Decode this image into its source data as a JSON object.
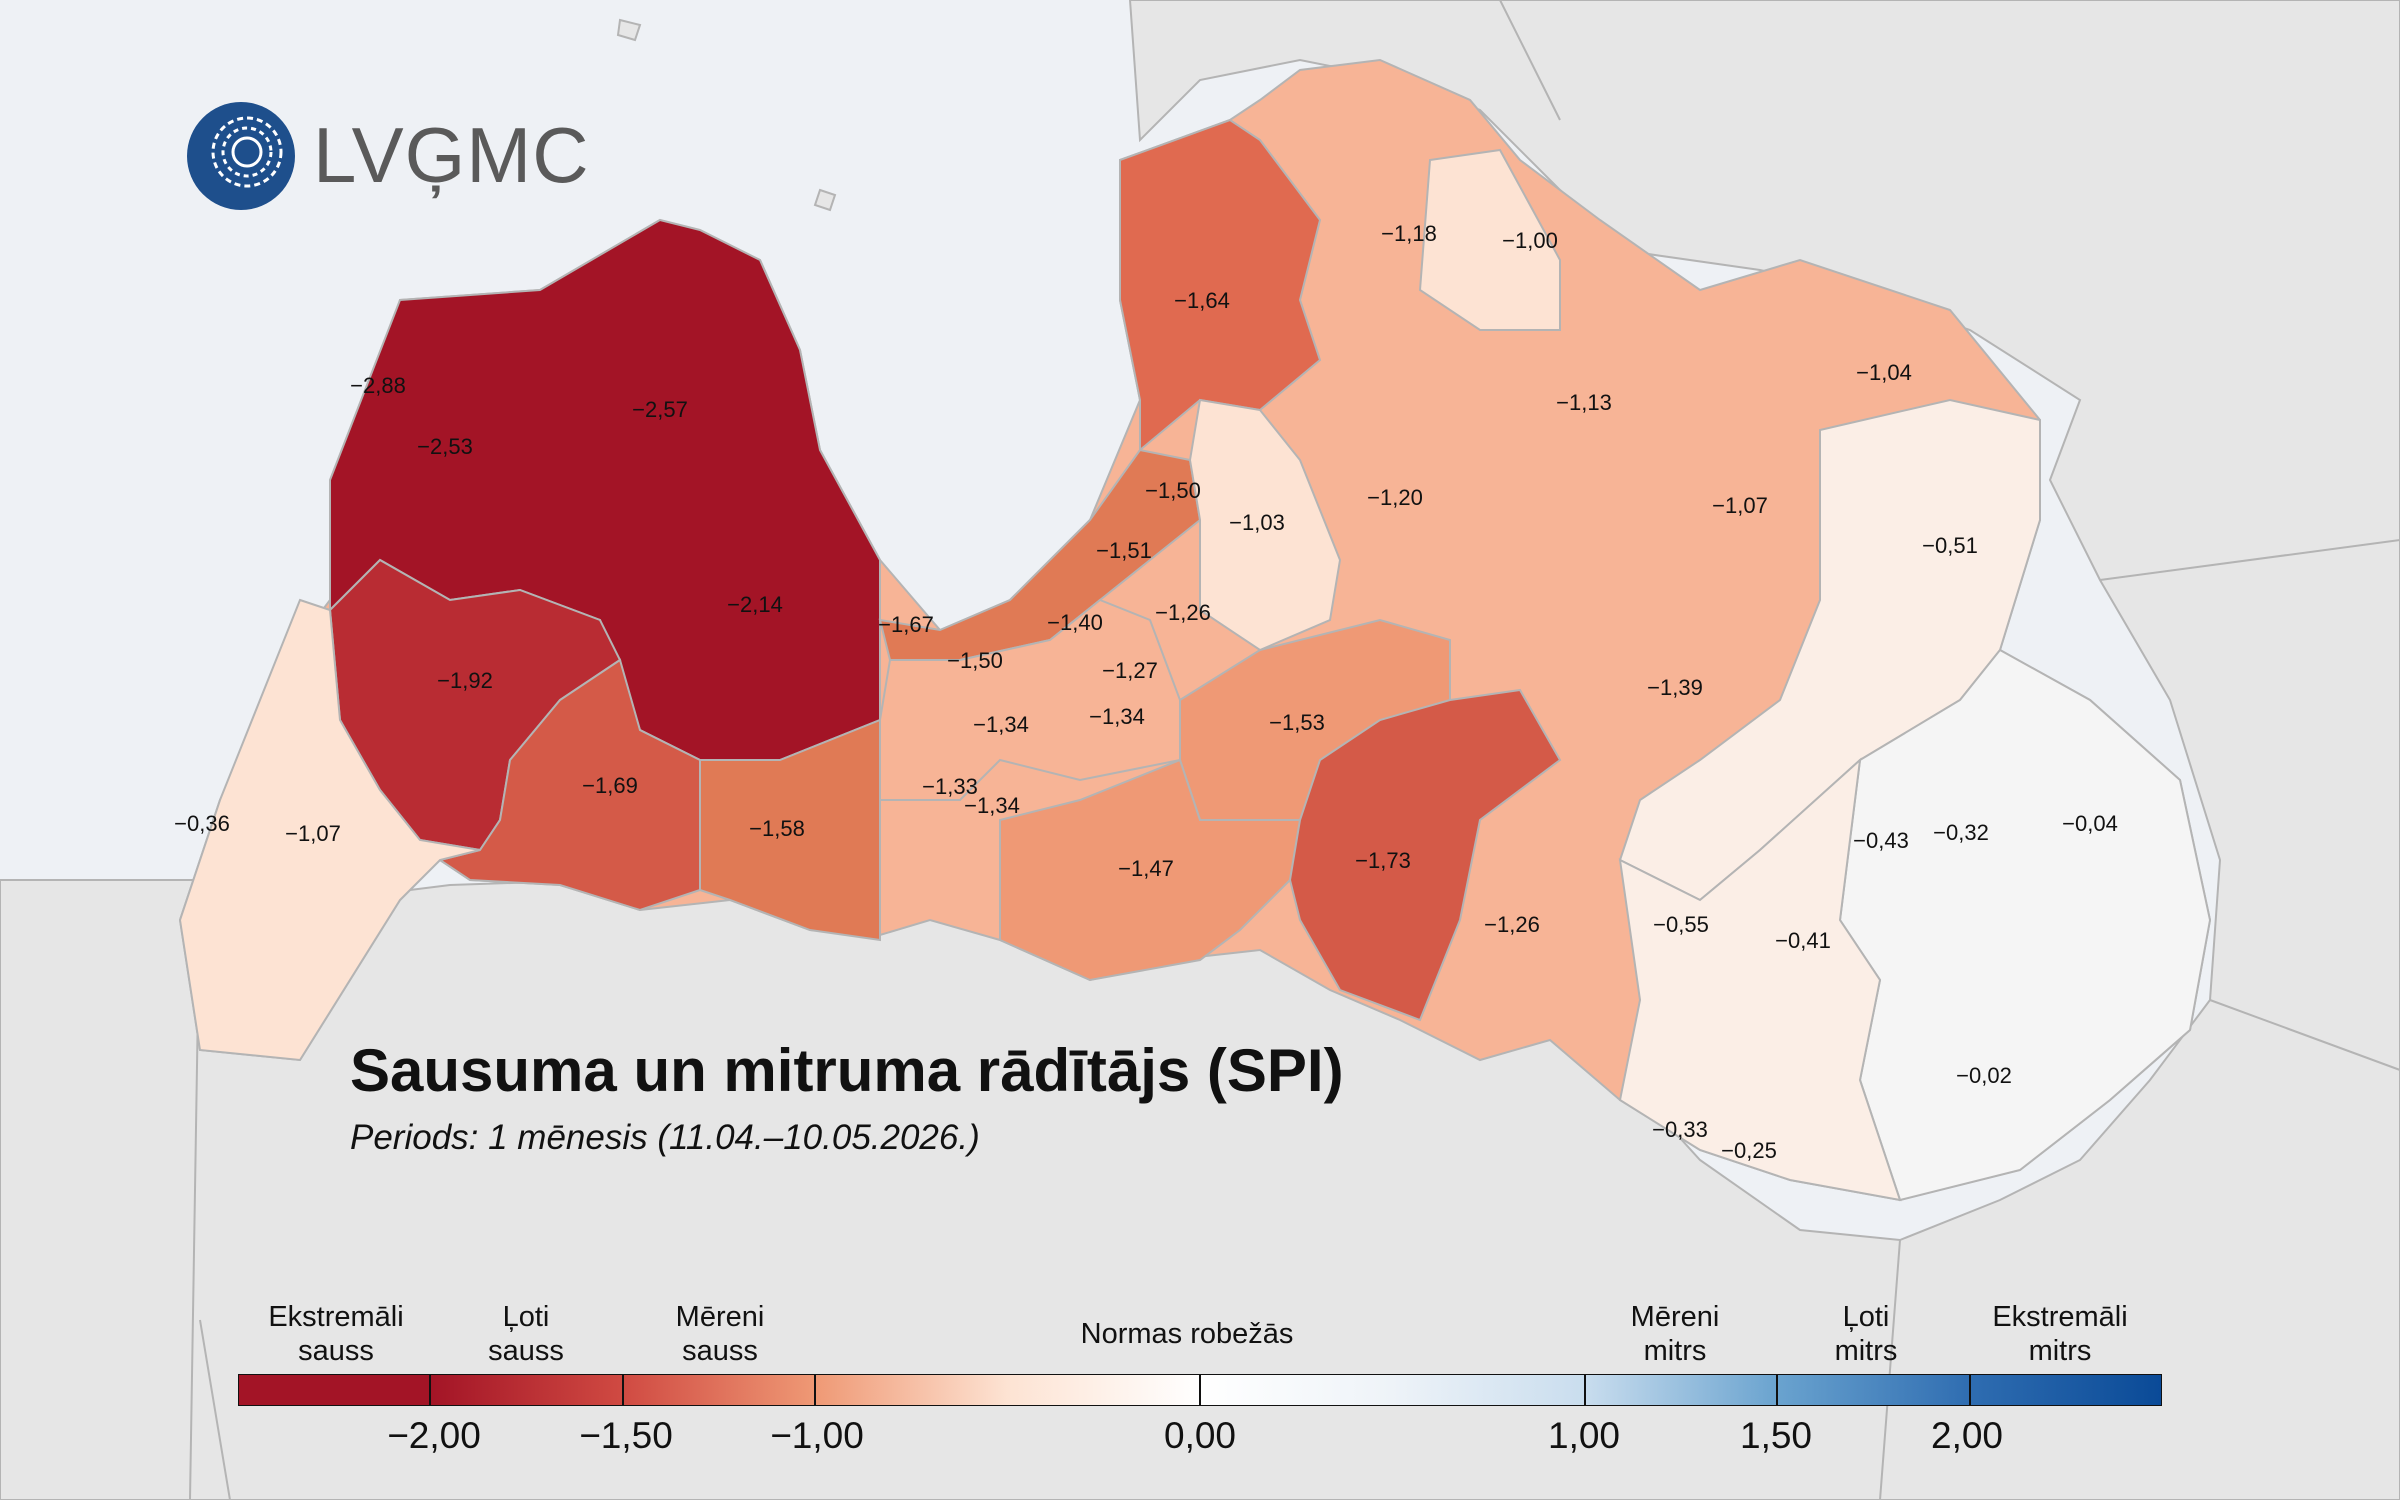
{
  "logo": {
    "text": "LVĢMC",
    "brand_color": "#1e4f8c"
  },
  "title": "Sausuma un mitruma rādītājs (SPI)",
  "subtitle": "Periods: 1 mēnesis (11.04.–10.05.2026.)",
  "colors": {
    "sea": "#eef1f5",
    "neighbor_land": "#e6e6e6",
    "border": "#b4b4b4",
    "extreme_dry": "#a31426",
    "very_dry": "#b92c33",
    "dry_dark": "#d45a48",
    "dry_mid": "#e07a55",
    "dry_light": "#ef9975",
    "mild": "#f7b496",
    "mild_light": "#fbcdb6",
    "near_normal": "#fde3d3",
    "pale": "#fbeee6",
    "neutral": "#f5f5f5"
  },
  "region_values": [
    "−2,88",
    "−2,53",
    "−2,57",
    "−2,14",
    "−1,92",
    "−1,69",
    "−1,58",
    "−1,67",
    "−1,50",
    "−1,34",
    "−1,33",
    "−1,34",
    "−1,40",
    "−1,51",
    "−1,50",
    "−1,26",
    "−1,27",
    "−1,34",
    "−1,03",
    "−1,64",
    "−1,18",
    "−1,00",
    "−1,13",
    "−1,04",
    "−1,20",
    "−1,07",
    "−0,51",
    "−1,39",
    "−1,53",
    "−1,47",
    "−1,73",
    "−1,26",
    "−0,55",
    "−0,41",
    "−0,43",
    "−0,32",
    "−0,04",
    "−0,02",
    "−0,33",
    "−0,25",
    "−0,36",
    "−1,07"
  ],
  "legend": {
    "categories": [
      {
        "line1": "Ekstremāli",
        "line2": "sauss"
      },
      {
        "line1": "Ļoti",
        "line2": "sauss"
      },
      {
        "line1": "Mēreni",
        "line2": "sauss"
      },
      {
        "line1": "Normas robežās",
        "line2": ""
      },
      {
        "line1": "Mēreni",
        "line2": "mitrs"
      },
      {
        "line1": "Ļoti",
        "line2": "mitrs"
      },
      {
        "line1": "Ekstremāli",
        "line2": "mitrs"
      }
    ],
    "ticks": [
      "−2,00",
      "−1,50",
      "−1,00",
      "0,00",
      "1,00",
      "1,50",
      "2,00"
    ],
    "scale_colors": [
      "#a31426",
      "#d04a42",
      "#ef9975",
      "#fde3d3",
      "#ffffff",
      "#c9ddee",
      "#6aa3cf",
      "#2f6db1",
      "#0a4a97"
    ]
  }
}
